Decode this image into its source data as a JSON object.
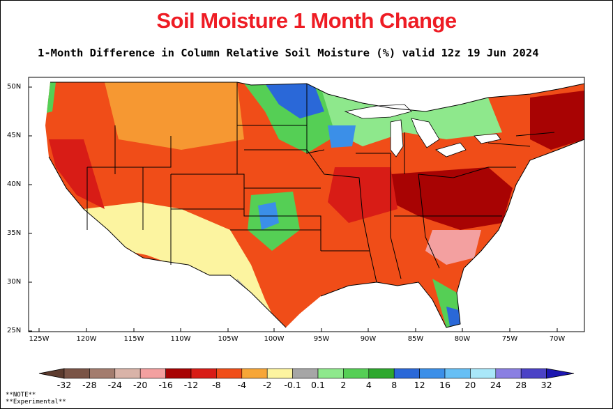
{
  "header": {
    "title": "Soil Moisture 1 Month Change",
    "subtitle": "1-Month Difference in Column Relative Soil Moisture (%) valid 12z 19 Jun 2024"
  },
  "map": {
    "region": "Contiguous United States",
    "variable": "Column Relative Soil Moisture change (%)",
    "lat_labels": [
      "50N",
      "45N",
      "40N",
      "35N",
      "30N",
      "25N"
    ],
    "lon_labels": [
      "125W",
      "120W",
      "115W",
      "110W",
      "105W",
      "100W",
      "95W",
      "90W",
      "85W",
      "80W",
      "75W",
      "70W"
    ]
  },
  "colorbar": {
    "labels": [
      "-32",
      "-28",
      "-24",
      "-20",
      "-16",
      "-12",
      "-8",
      "-4",
      "-2",
      "-0.1",
      "0.1",
      "2",
      "4",
      "8",
      "12",
      "16",
      "20",
      "24",
      "28",
      "32"
    ],
    "colors": [
      "#7a5446",
      "#a37c6e",
      "#d9b3a8",
      "#f3a0a0",
      "#a80303",
      "#d81c16",
      "#f04d18",
      "#f7a637",
      "#fcf4a0",
      "#a6a6a6",
      "#8ee88c",
      "#55cf55",
      "#2ea82e",
      "#2a68d8",
      "#3b8fe8",
      "#66bff5",
      "#a9e7f9",
      "#8a7fe2",
      "#4b42c6"
    ],
    "low_color": "#5c3b2e",
    "high_color": "#1d16b0"
  },
  "notes": [
    "**NOTE**",
    "**Experimental**"
  ]
}
